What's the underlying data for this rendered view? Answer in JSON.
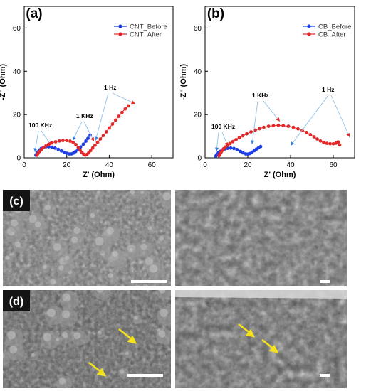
{
  "charts": {
    "a": {
      "panel_label": "(a)",
      "xlabel": "Z' (Ohm)",
      "ylabel": "-Z'' (Ohm)",
      "xlim": [
        0,
        70
      ],
      "ylim": [
        0,
        70
      ],
      "xticks": [
        "0",
        "20",
        "40",
        "60"
      ],
      "yticks": [
        "0",
        "20",
        "40",
        "60"
      ],
      "series": [
        {
          "name": "CNT_Before",
          "color": "#1f3fe6",
          "marker": "circle",
          "x": [
            5.5,
            6,
            6.5,
            7.2,
            8,
            9,
            10.2,
            11.5,
            13,
            14.5,
            16,
            17.5,
            18.8,
            20,
            21.2,
            22.2,
            23.2,
            24.2,
            25.3,
            26.5,
            27.8,
            29,
            30,
            31
          ],
          "y": [
            1.2,
            2,
            2.8,
            3.6,
            4.3,
            4.8,
            5.1,
            5.1,
            4.9,
            4.5,
            3.9,
            3.2,
            2.6,
            2.1,
            1.8,
            1.8,
            2.2,
            2.9,
            3.8,
            5,
            6.3,
            7.7,
            9,
            10.5
          ]
        },
        {
          "name": "CNT_After",
          "color": "#e3282a",
          "marker": "circle",
          "x": [
            6,
            6.5,
            7.2,
            8,
            9,
            10.2,
            11.5,
            13,
            14.8,
            16.5,
            18.2,
            20,
            21.6,
            23,
            24.3,
            25.4,
            26.3,
            27.2,
            28,
            28.8,
            29.5,
            30.3,
            31.2,
            32.2,
            33.3,
            34.5,
            35.8,
            37.2,
            38.6,
            40,
            41.5,
            43,
            44.5,
            46,
            47.5,
            49
          ],
          "y": [
            1.2,
            2,
            2.9,
            3.8,
            4.7,
            5.5,
            6.2,
            6.9,
            7.4,
            7.8,
            8,
            8,
            7.7,
            7.1,
            6.1,
            4.8,
            3.5,
            2.4,
            1.6,
            1.3,
            1.5,
            2.3,
            3.3,
            4.5,
            5.8,
            7.2,
            8.7,
            10.3,
            12,
            13.8,
            15.6,
            17.4,
            19.2,
            21,
            22.6,
            24
          ]
        }
      ],
      "annotations": [
        {
          "text": "100 KHz"
        },
        {
          "text": "1 KHz"
        },
        {
          "text": "1 Hz"
        }
      ]
    },
    "b": {
      "panel_label": "(b)",
      "xlabel": "Z' (Ohm)",
      "ylabel": "-Z'' (Ohm)",
      "xlim": [
        0,
        70
      ],
      "ylim": [
        0,
        70
      ],
      "xticks": [
        "0",
        "20",
        "40",
        "60"
      ],
      "yticks": [
        "0",
        "20",
        "40",
        "60"
      ],
      "series": [
        {
          "name": "CB_Before",
          "color": "#1f3fe6",
          "marker": "circle",
          "x": [
            5,
            5.5,
            6.2,
            7,
            8,
            9.2,
            10.5,
            12,
            13.5,
            15,
            16.5,
            17.8,
            19,
            20,
            21,
            22,
            23,
            24,
            25,
            26
          ],
          "y": [
            0.8,
            1.6,
            2.3,
            3,
            3.6,
            4.1,
            4.4,
            4.5,
            4.3,
            3.8,
            3,
            2.3,
            1.8,
            1.7,
            2,
            2.6,
            3.3,
            4,
            4.6,
            5.2
          ]
        },
        {
          "name": "CB_After",
          "color": "#e3282a",
          "marker": "circle",
          "x": [
            6.5,
            7,
            7.5,
            8,
            8.7,
            9.5,
            10.5,
            11.7,
            13,
            14.5,
            16,
            17.7,
            19.5,
            21.5,
            23.5,
            25.5,
            27.5,
            29.7,
            32,
            34.3,
            36.6,
            39,
            41.3,
            43.5,
            45.5,
            47.5,
            49.3,
            51,
            52.5,
            54,
            55.5,
            57,
            58.5,
            60,
            61.3,
            62.3,
            63
          ],
          "y": [
            1,
            1.8,
            2.6,
            3.4,
            4.2,
            5,
            5.8,
            6.6,
            7.5,
            8.4,
            9.3,
            10.2,
            11.1,
            12,
            12.8,
            13.5,
            14.1,
            14.6,
            14.9,
            15,
            14.9,
            14.6,
            14.1,
            13.4,
            12.6,
            11.7,
            10.7,
            9.7,
            8.7,
            7.8,
            7.1,
            6.7,
            6.5,
            6.5,
            6.8,
            7.3,
            6
          ]
        }
      ],
      "annotations": [
        {
          "text": "100 KHz"
        },
        {
          "text": "1 KHz"
        },
        {
          "text": "1 Hz"
        }
      ]
    }
  },
  "micrographs": {
    "c": {
      "label": "(c)"
    },
    "d": {
      "label": "(d)"
    }
  },
  "chart_data": [
    {
      "type": "scatter",
      "title": "(a)",
      "xlabel": "Z' (Ohm)",
      "ylabel": "-Z'' (Ohm)",
      "xlim": [
        0,
        70
      ],
      "ylim": [
        0,
        70
      ],
      "legend_position": "top-right",
      "series": [
        {
          "name": "CNT_Before"
        },
        {
          "name": "CNT_After"
        }
      ]
    },
    {
      "type": "scatter",
      "title": "(b)",
      "xlabel": "Z' (Ohm)",
      "ylabel": "-Z'' (Ohm)",
      "xlim": [
        0,
        70
      ],
      "ylim": [
        0,
        70
      ],
      "legend_position": "top-right",
      "series": [
        {
          "name": "CB_Before"
        },
        {
          "name": "CB_After"
        }
      ]
    }
  ]
}
